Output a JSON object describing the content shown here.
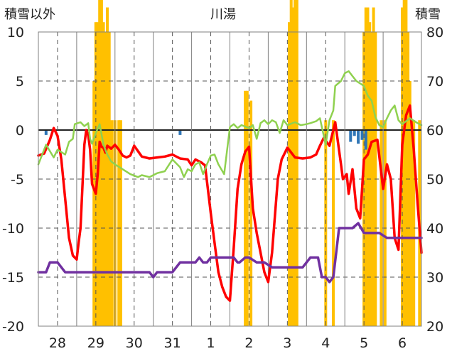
{
  "chart_data": {
    "type": "line",
    "title": "川湯",
    "ylabel_left": "積雪以外",
    "ylabel_right": "積雪",
    "ylim_left": [
      -20,
      10
    ],
    "ylim_right": [
      20,
      80
    ],
    "yticks_left": [
      "10",
      "5",
      "0",
      "-5",
      "-10",
      "-15",
      "-20"
    ],
    "yticks_right": [
      "80",
      "70",
      "60",
      "50",
      "40",
      "30",
      "20"
    ],
    "xlim_days": [
      -0.5,
      9.5
    ],
    "categories": [
      "28",
      "29",
      "30",
      "31",
      "1",
      "2",
      "3",
      "4",
      "5",
      "6"
    ],
    "grid": true,
    "colors": {
      "temperature": "#ff0000",
      "humidity_like": "#8fd14f",
      "snow_depth": "#7030a0",
      "precip_bars": "#ffc000",
      "neg_bars": "#2e75b6",
      "zero_line": "#222222",
      "grid": "#555555"
    },
    "series": [
      {
        "key": "temperature",
        "axis": "left",
        "x": [
          -0.5,
          -0.35,
          -0.2,
          -0.1,
          0.0,
          0.1,
          0.2,
          0.3,
          0.4,
          0.5,
          0.55,
          0.6,
          0.7,
          0.75,
          0.8,
          0.85,
          0.9,
          1.0,
          1.05,
          1.1,
          1.15,
          1.2,
          1.25,
          1.3,
          1.4,
          1.5,
          1.6,
          1.7,
          1.8,
          1.9,
          2.0,
          2.2,
          2.4,
          2.6,
          2.8,
          3.0,
          3.2,
          3.4,
          3.5,
          3.6,
          3.75,
          3.85,
          4.0,
          4.1,
          4.2,
          4.3,
          4.4,
          4.5,
          4.6,
          4.7,
          4.8,
          4.9,
          5.0,
          5.1,
          5.2,
          5.3,
          5.4,
          5.5,
          5.6,
          5.75,
          5.85,
          6.0,
          6.2,
          6.4,
          6.6,
          6.75,
          6.85,
          6.95,
          7.1,
          7.25,
          7.4,
          7.45,
          7.55,
          7.6,
          7.7,
          7.8,
          7.9,
          8.0,
          8.1,
          8.2,
          8.35,
          8.5,
          8.6,
          8.7,
          8.8,
          8.9,
          9.0,
          9.1,
          9.2,
          9.3,
          9.4,
          9.5
        ],
        "y": [
          -2.6,
          -2.4,
          -1.0,
          0.2,
          -0.6,
          -3.0,
          -7.0,
          -11.0,
          -12.8,
          -13.2,
          -11.5,
          -10.0,
          -1.5,
          0.0,
          -0.5,
          -2.0,
          -5.5,
          -6.5,
          -4.5,
          -1.2,
          -1.7,
          -1.8,
          -2.3,
          -1.6,
          -1.9,
          -1.5,
          -2.0,
          -2.6,
          -2.8,
          -2.6,
          -1.6,
          -2.7,
          -2.9,
          -2.8,
          -2.7,
          -2.5,
          -2.9,
          -3.0,
          -3.6,
          -3.0,
          -3.3,
          -3.6,
          -8.5,
          -11.5,
          -14.5,
          -16.0,
          -17.0,
          -17.4,
          -12.0,
          -6.0,
          -3.5,
          -2.2,
          -1.7,
          -8.0,
          -10.5,
          -12.5,
          -14.5,
          -15.5,
          -12.5,
          -5.0,
          -3.0,
          -1.8,
          -2.8,
          -2.9,
          -2.8,
          -2.5,
          -1.6,
          -0.8,
          -1.6,
          0.8,
          -3.5,
          -5.0,
          -4.5,
          -6.5,
          -4.0,
          -8.0,
          -9.0,
          -3.0,
          -2.5,
          -1.2,
          -1.0,
          -6.0,
          -3.5,
          -5.0,
          -11.0,
          -12.2,
          -1.5,
          1.5,
          2.5,
          -2.0,
          -7.5,
          -12.5
        ]
      },
      {
        "key": "humidity_like",
        "axis": "left",
        "x": [
          -0.5,
          -0.3,
          -0.1,
          0.0,
          0.2,
          0.3,
          0.4,
          0.45,
          0.6,
          0.7,
          0.8,
          0.85,
          0.9,
          1.0,
          1.1,
          1.2,
          1.3,
          1.4,
          1.5,
          1.7,
          1.9,
          2.1,
          2.2,
          2.4,
          2.6,
          2.8,
          3.0,
          3.2,
          3.3,
          3.4,
          3.5,
          3.6,
          3.7,
          3.8,
          3.9,
          4.0,
          4.1,
          4.2,
          4.35,
          4.5,
          4.6,
          4.7,
          4.8,
          5.0,
          5.1,
          5.2,
          5.3,
          5.4,
          5.5,
          5.6,
          5.7,
          5.8,
          5.9,
          6.0,
          6.2,
          6.35,
          6.5,
          6.6,
          6.75,
          6.85,
          7.0,
          7.1,
          7.2,
          7.25,
          7.4,
          7.5,
          7.6,
          7.7,
          7.8,
          8.0,
          8.1,
          8.2,
          8.3,
          8.4,
          8.5,
          8.6,
          8.7,
          8.8,
          8.9,
          9.0,
          9.2,
          9.4,
          9.5
        ],
        "y": [
          -3.5,
          -1.5,
          -2.8,
          -2.0,
          -2.5,
          -1.2,
          -0.9,
          0.6,
          0.8,
          0.4,
          0.7,
          -0.9,
          -1.4,
          -0.3,
          0.6,
          -1.5,
          -2.5,
          -3.2,
          -3.5,
          -4.0,
          -4.5,
          -4.8,
          -4.6,
          -4.8,
          -4.4,
          -4.2,
          -3.0,
          -3.8,
          -4.8,
          -4.0,
          -4.2,
          -3.5,
          -3.3,
          -4.5,
          -3.5,
          -2.6,
          -2.5,
          -3.5,
          -4.5,
          0.3,
          0.6,
          0.2,
          0.5,
          0.2,
          0.5,
          -0.9,
          0.7,
          1.0,
          0.6,
          1.0,
          0.8,
          -0.3,
          1.0,
          0.5,
          0.8,
          0.5,
          0.6,
          0.7,
          0.9,
          1.2,
          -1.5,
          1.0,
          2.0,
          4.5,
          5.0,
          5.8,
          6.0,
          5.5,
          5.0,
          4.5,
          3.5,
          3.0,
          1.3,
          0.5,
          0.3,
          1.2,
          2.0,
          2.5,
          1.0,
          0.6,
          1.2,
          0.7,
          0.5
        ]
      },
      {
        "key": "snow_depth",
        "axis": "right",
        "x": [
          -0.5,
          -0.3,
          -0.2,
          0.0,
          0.2,
          2.4,
          2.5,
          2.6,
          2.8,
          3.0,
          3.2,
          3.4,
          3.6,
          3.7,
          3.8,
          3.9,
          4.0,
          4.6,
          4.7,
          4.75,
          4.9,
          5.0,
          5.2,
          5.4,
          5.6,
          6.0,
          6.4,
          6.6,
          6.8,
          6.9,
          7.0,
          7.1,
          7.2,
          7.35,
          7.6,
          7.7,
          7.85,
          8.0,
          8.2,
          8.4,
          8.6,
          8.8,
          9.0,
          9.2,
          9.5
        ],
        "y": [
          31,
          31,
          33,
          33,
          31,
          31,
          30,
          31,
          31,
          31,
          33,
          33,
          33,
          34,
          33,
          33,
          34,
          34,
          33,
          33,
          34,
          34,
          33,
          33,
          32,
          32,
          32,
          34,
          34,
          30,
          30,
          29,
          30,
          40,
          40,
          40,
          41,
          39,
          39,
          39,
          38,
          38,
          38,
          38,
          38
        ]
      }
    ],
    "bars": [
      {
        "key": "precip_bars",
        "axis": "right",
        "x": [
          0.95,
          1.0,
          1.05,
          1.1,
          1.15,
          1.2,
          1.25,
          1.3,
          1.35,
          1.42,
          1.5,
          1.6,
          1.65,
          4.9,
          4.95,
          5.05,
          6.05,
          6.1,
          6.15,
          6.2,
          6.25,
          7.0,
          7.2,
          8.0,
          8.05,
          8.1,
          8.15,
          8.2,
          8.25,
          8.3,
          8.45,
          8.55,
          9.0,
          9.05,
          9.1,
          9.15,
          9.2,
          9.25,
          9.3,
          9.45
        ],
        "y": [
          70,
          82,
          82,
          88,
          90,
          82,
          80,
          85,
          80,
          62,
          62,
          62,
          62,
          68,
          68,
          66,
          82,
          88,
          85,
          90,
          88,
          62,
          62,
          80,
          85,
          85,
          82,
          80,
          85,
          80,
          62,
          62,
          85,
          90,
          88,
          80,
          70,
          62,
          62,
          62
        ]
      },
      {
        "key": "neg_bars",
        "axis": "left",
        "x": [
          -0.3,
          3.2,
          7.65,
          7.75,
          7.85,
          7.95,
          8.05
        ],
        "y": [
          -0.5,
          -0.5,
          -1.2,
          -0.6,
          -1.4,
          -1.0,
          -2.0
        ]
      }
    ]
  }
}
